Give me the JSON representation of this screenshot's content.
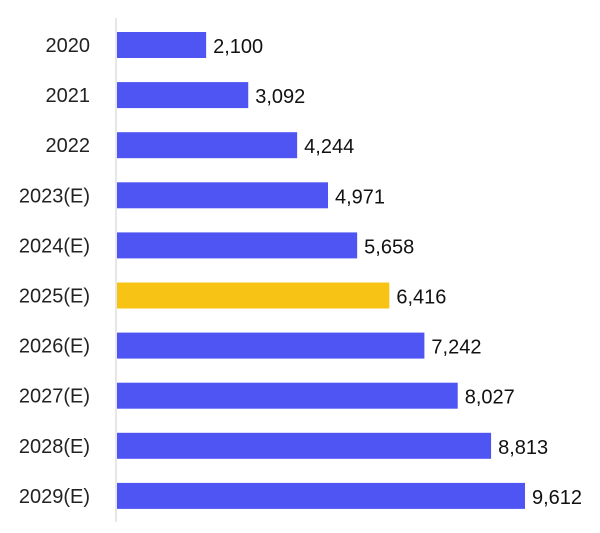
{
  "chart_data": {
    "type": "bar",
    "orientation": "horizontal",
    "title": "",
    "xlabel": "",
    "ylabel": "",
    "categories": [
      "2020",
      "2021",
      "2022",
      "2023(E)",
      "2024(E)",
      "2025(E)",
      "2026(E)",
      "2027(E)",
      "2028(E)",
      "2029(E)"
    ],
    "values": [
      2100,
      3092,
      4244,
      4971,
      5658,
      6416,
      7242,
      8027,
      8813,
      9612
    ],
    "value_labels": [
      "2,100",
      "3,092",
      "4,244",
      "4,971",
      "5,658",
      "6,416",
      "7,242",
      "8,027",
      "8,813",
      "9,612"
    ],
    "xlim": [
      0,
      9612
    ],
    "grid": false,
    "highlight_category": "2025(E)",
    "colors": {
      "bar": "#4f55f3",
      "highlight": "#f7c416",
      "axis": "#cfcfcf"
    }
  }
}
